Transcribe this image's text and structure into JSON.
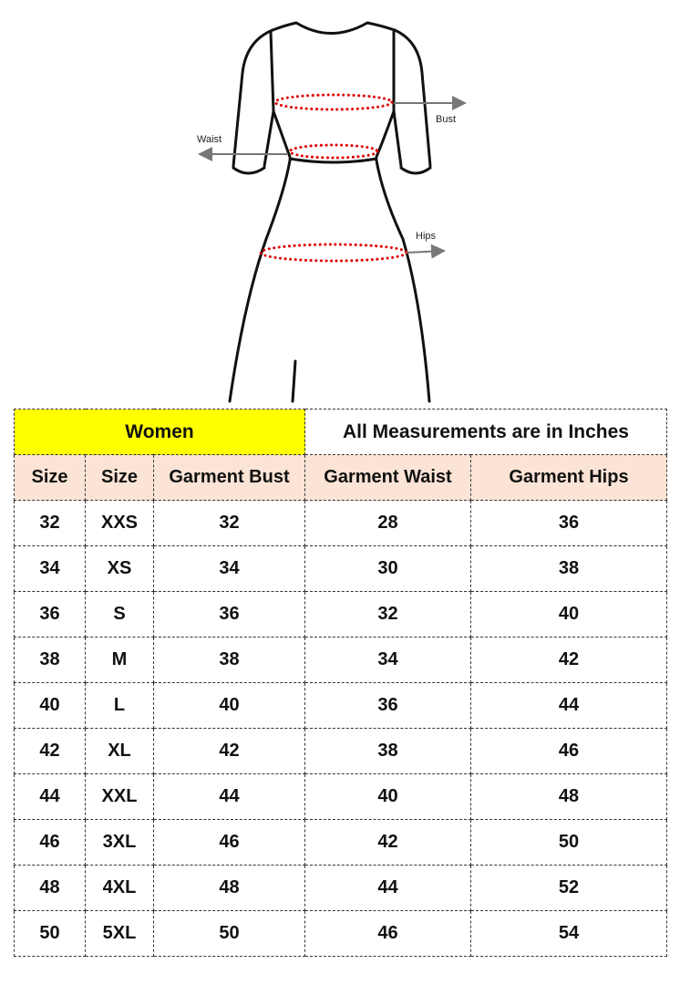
{
  "diagram": {
    "labels": {
      "bust": "Bust",
      "waist": "Waist",
      "hips": "Hips"
    },
    "measure_line_color": "#e00000",
    "arrow_color": "#777777"
  },
  "table": {
    "title": "Women",
    "note": "All Measurements are in Inches",
    "title_color": "#ffff00",
    "header_color": "#fbe4d6",
    "headers": [
      "Size",
      "Size",
      "Garment Bust",
      "Garment Waist",
      "Garment Hips"
    ],
    "rows": [
      [
        "32",
        "XXS",
        "32",
        "28",
        "36"
      ],
      [
        "34",
        "XS",
        "34",
        "30",
        "38"
      ],
      [
        "36",
        "S",
        "36",
        "32",
        "40"
      ],
      [
        "38",
        "M",
        "38",
        "34",
        "42"
      ],
      [
        "40",
        "L",
        "40",
        "36",
        "44"
      ],
      [
        "42",
        "XL",
        "42",
        "38",
        "46"
      ],
      [
        "44",
        "XXL",
        "44",
        "40",
        "48"
      ],
      [
        "46",
        "3XL",
        "46",
        "42",
        "50"
      ],
      [
        "48",
        "4XL",
        "48",
        "44",
        "52"
      ],
      [
        "50",
        "5XL",
        "50",
        "46",
        "54"
      ]
    ]
  }
}
